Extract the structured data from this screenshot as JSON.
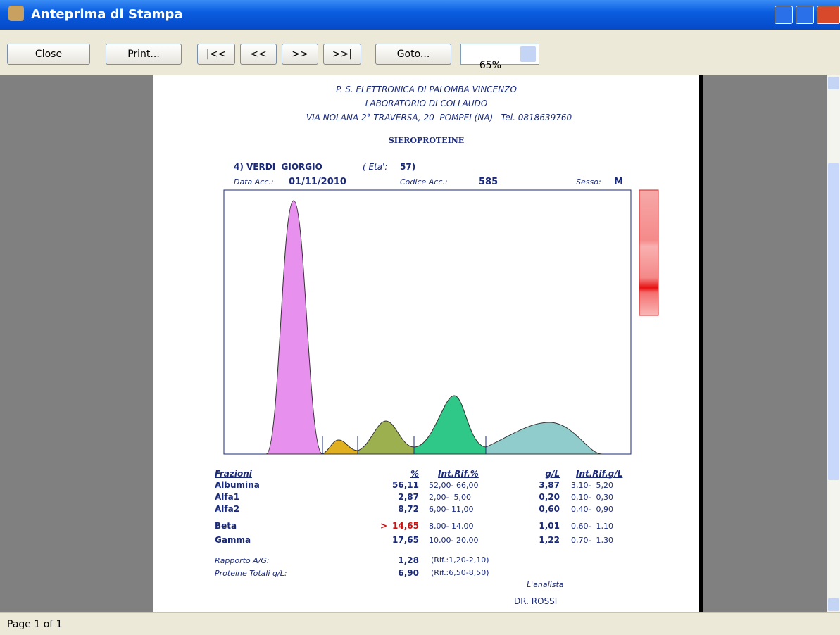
{
  "window": {
    "title": "Anteprima di Stampa",
    "toolbar": {
      "buttons": [
        "Close",
        "Print...",
        "|<<",
        "<<",
        ">>",
        ">>|",
        "Goto..."
      ],
      "zoom": "65%"
    },
    "status": "Page 1 of 1"
  },
  "report": {
    "header": [
      "P. S. ELETTRONICA DI PALOMBA VINCENZO",
      "LABORATORIO DI COLLAUDO",
      "VIA NOLANA 2° TRAVERSA, 20  POMPEI (NA)   Tel. 0818639760"
    ],
    "section": "SIEROPROTEINE",
    "patient": {
      "name": "4) VERDI  GIORGIO",
      "age_label": "( Eta':",
      "age": "57)",
      "date_label": "Data Acc.:",
      "date": "01/11/2010",
      "code_label": "Codice Acc.:",
      "code": "585",
      "sex_label": "Sesso:",
      "sex": "M"
    },
    "table": {
      "header": [
        "Frazioni",
        "%",
        "Int.Rif.%",
        "g/L",
        "Int.Rif.g/L"
      ],
      "rows": [
        {
          "name": "Albumina",
          "flag": null,
          "pct": "56,11",
          "ref_pct": "52,00- 66,00",
          "gl": "3,87",
          "ref_gl": "3,10-  5,20"
        },
        {
          "name": "Alfa1",
          "flag": null,
          "pct": "2,87",
          "ref_pct": "2,00-  5,00",
          "gl": "0,20",
          "ref_gl": "0,10-  0,30"
        },
        {
          "name": "Alfa2",
          "flag": null,
          "pct": "8,72",
          "ref_pct": "6,00- 11,00",
          "gl": "0,60",
          "ref_gl": "0,40-  0,90"
        },
        {
          "name": "Beta",
          "flag": ">",
          "pct": "14,65",
          "ref_pct": "8,00- 14,00",
          "gl": "1,01",
          "ref_gl": "0,60-  1,10"
        },
        {
          "name": "Gamma",
          "flag": null,
          "pct": "17,65",
          "ref_pct": "10,00- 20,00",
          "gl": "1,22",
          "ref_gl": "0,70-  1,30"
        }
      ]
    },
    "ratio": {
      "label": "Rapporto A/G:",
      "value": "1,28",
      "ref": "(Rif.:1,20-2,10)"
    },
    "total": {
      "label": "Proteine Totali g/L:",
      "value": "6,90",
      "ref": "(Rif.:6,50-8,50)"
    },
    "signature": {
      "label": "L'analista",
      "name": "DR. ROSSI"
    }
  }
}
